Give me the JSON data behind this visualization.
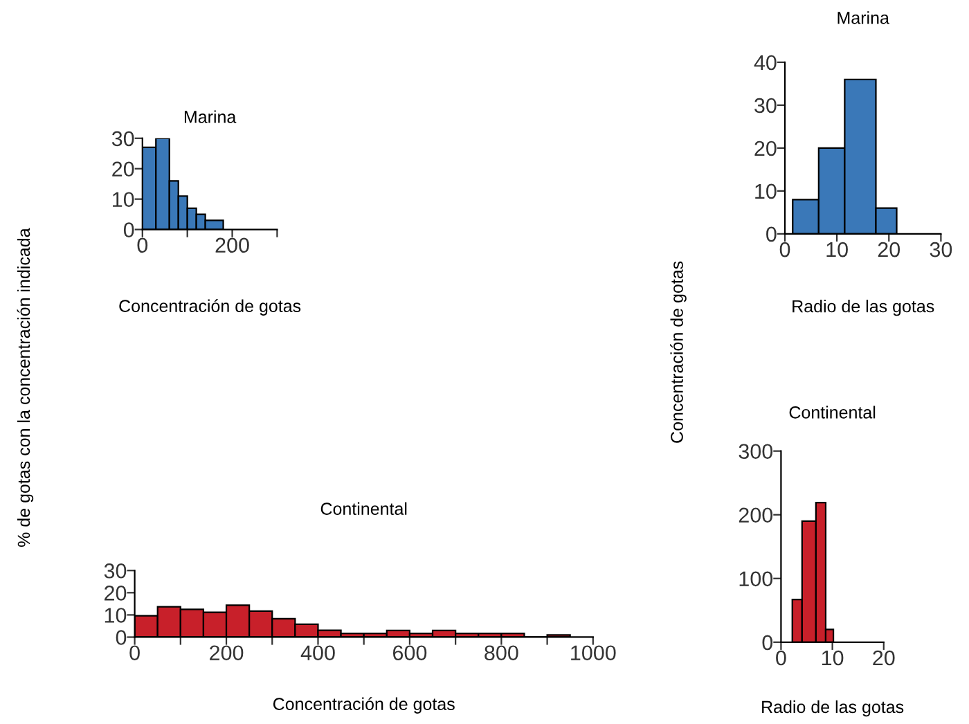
{
  "chart_data": [
    {
      "type": "histogram",
      "title": "Marina",
      "xlabel": "Concentración de gotas",
      "ylabel": "% de gotas con la concentración indicada",
      "color": "#3a78b8",
      "bins": [
        0,
        30,
        60,
        80,
        100,
        120,
        140,
        180
      ],
      "values": [
        27,
        30,
        16,
        11,
        7,
        5,
        3
      ],
      "xlim": [
        0,
        300
      ],
      "xticks": [
        0,
        {
          "value": 100,
          "label": null
        },
        200,
        {
          "value": 300,
          "label": null
        }
      ],
      "ylim": [
        0,
        30
      ],
      "yticks": [
        0,
        10,
        20,
        30
      ],
      "grid": false,
      "legend": false
    },
    {
      "type": "histogram",
      "title": "Continental",
      "xlabel": "Concentración de gotas",
      "color": "#c8202a",
      "bins": [
        0,
        50,
        100,
        150,
        200,
        250,
        300,
        350,
        400,
        450,
        500,
        550,
        600,
        650,
        700,
        750,
        800,
        850,
        900,
        950
      ],
      "values": [
        9.6,
        13.7,
        12.5,
        11.2,
        14.4,
        11.7,
        8.3,
        5.8,
        3.1,
        1.7,
        1.7,
        3,
        1.7,
        3,
        1.7,
        1.7,
        1.7,
        0,
        1
      ],
      "xlim": [
        0,
        1000
      ],
      "xticks": [
        0,
        {
          "value": 100,
          "label": null
        },
        200,
        {
          "value": 300,
          "label": null
        },
        400,
        {
          "value": 500,
          "label": null
        },
        600,
        {
          "value": 700,
          "label": null
        },
        800,
        {
          "value": 900,
          "label": null
        },
        1000
      ],
      "ylim": [
        0,
        30
      ],
      "yticks": [
        0,
        10,
        20,
        30
      ],
      "grid": false,
      "legend": false
    },
    {
      "type": "histogram",
      "title": "Marina",
      "xlabel": "Radio de las gotas",
      "ylabel": "Concentración de gotas",
      "color": "#3a78b8",
      "bins": [
        1.5,
        6.5,
        11.5,
        17.5,
        21.5
      ],
      "values": [
        8,
        20,
        36,
        6
      ],
      "xlim": [
        0,
        30
      ],
      "xticks": [
        0,
        10,
        20,
        30
      ],
      "ylim": [
        0,
        40
      ],
      "yticks": [
        0,
        10,
        20,
        30,
        40
      ],
      "grid": false,
      "legend": false
    },
    {
      "type": "histogram",
      "title": "Continental",
      "xlabel": "Radio de las gotas",
      "color": "#c8202a",
      "bins": [
        2.2,
        4.1,
        6.8,
        8.7,
        10.2
      ],
      "values": [
        67,
        190,
        219,
        20
      ],
      "xlim": [
        0,
        20
      ],
      "xticks": [
        0,
        10,
        20
      ],
      "ylim": [
        0,
        300
      ],
      "yticks": [
        0,
        100,
        200,
        300
      ],
      "grid": false,
      "legend": false
    }
  ]
}
